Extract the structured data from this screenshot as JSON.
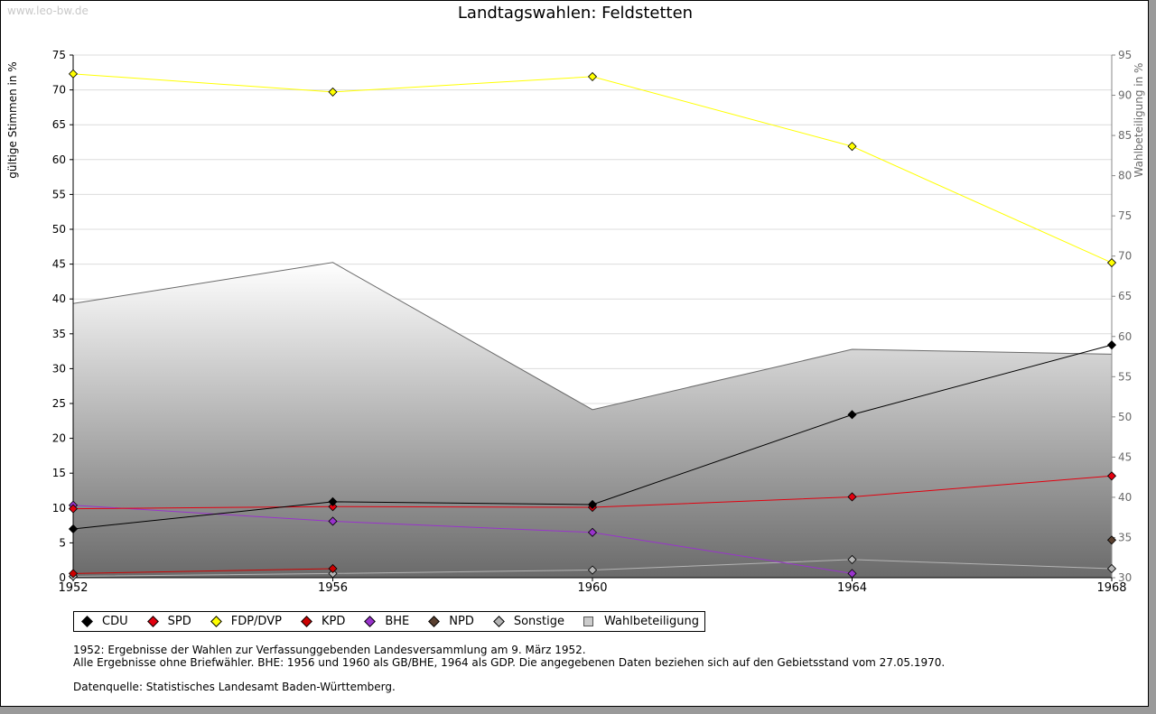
{
  "watermark": "www.leo-bw.de",
  "notes": {
    "line1": "1952: Ergebnisse der Wahlen zur Verfassunggebenden Landesversammlung am 9. März 1952.",
    "line2": "Alle Ergebnisse ohne Briefwähler. BHE: 1956 und 1960 als GB/BHE, 1964 als GDP. Die angegebenen Daten beziehen sich auf den Gebietsstand vom 27.05.1970.",
    "source": "Datenquelle: Statistisches Landesamt Baden-Württemberg."
  },
  "chart_data": {
    "type": "line",
    "title": "Landtagswahlen: Feldstetten",
    "ylabel": "gültige Stimmen in %",
    "y2label": "Wahlbeteiligung in %",
    "categories": [
      "1952",
      "1956",
      "1960",
      "1964",
      "1968"
    ],
    "ylim": [
      0,
      75
    ],
    "yticks": [
      0,
      5,
      10,
      15,
      20,
      25,
      30,
      35,
      40,
      45,
      50,
      55,
      60,
      65,
      70,
      75
    ],
    "y2lim": [
      30,
      95
    ],
    "y2ticks": [
      30,
      35,
      40,
      45,
      50,
      55,
      60,
      65,
      70,
      75,
      80,
      85,
      90,
      95
    ],
    "grid": true,
    "legend_position": "bottom-left",
    "series": [
      {
        "name": "CDU",
        "color": "#000000",
        "values": [
          7.0,
          10.9,
          10.5,
          23.4,
          33.4
        ]
      },
      {
        "name": "SPD",
        "color": "#e3000f",
        "values": [
          9.9,
          10.2,
          10.1,
          11.6,
          14.6
        ]
      },
      {
        "name": "FDP/DVP",
        "color": "#ffff00",
        "values": [
          72.3,
          69.7,
          71.9,
          61.9,
          45.2
        ]
      },
      {
        "name": "KPD",
        "color": "#cc0000",
        "values": [
          0.6,
          1.3,
          null,
          null,
          null
        ]
      },
      {
        "name": "BHE",
        "color": "#9933cc",
        "values": [
          10.4,
          8.1,
          6.5,
          0.6,
          null
        ]
      },
      {
        "name": "NPD",
        "color": "#5a4030",
        "values": [
          null,
          null,
          null,
          null,
          5.4
        ]
      },
      {
        "name": "Sonstige",
        "color": "#b4b4b4",
        "values": [
          0.2,
          0.6,
          1.1,
          2.6,
          1.3
        ]
      },
      {
        "name": "Wahlbeteiligung",
        "color": "#cccccc",
        "axis": "right",
        "values": [
          64.1,
          69.2,
          50.9,
          58.4,
          57.8
        ]
      }
    ]
  }
}
